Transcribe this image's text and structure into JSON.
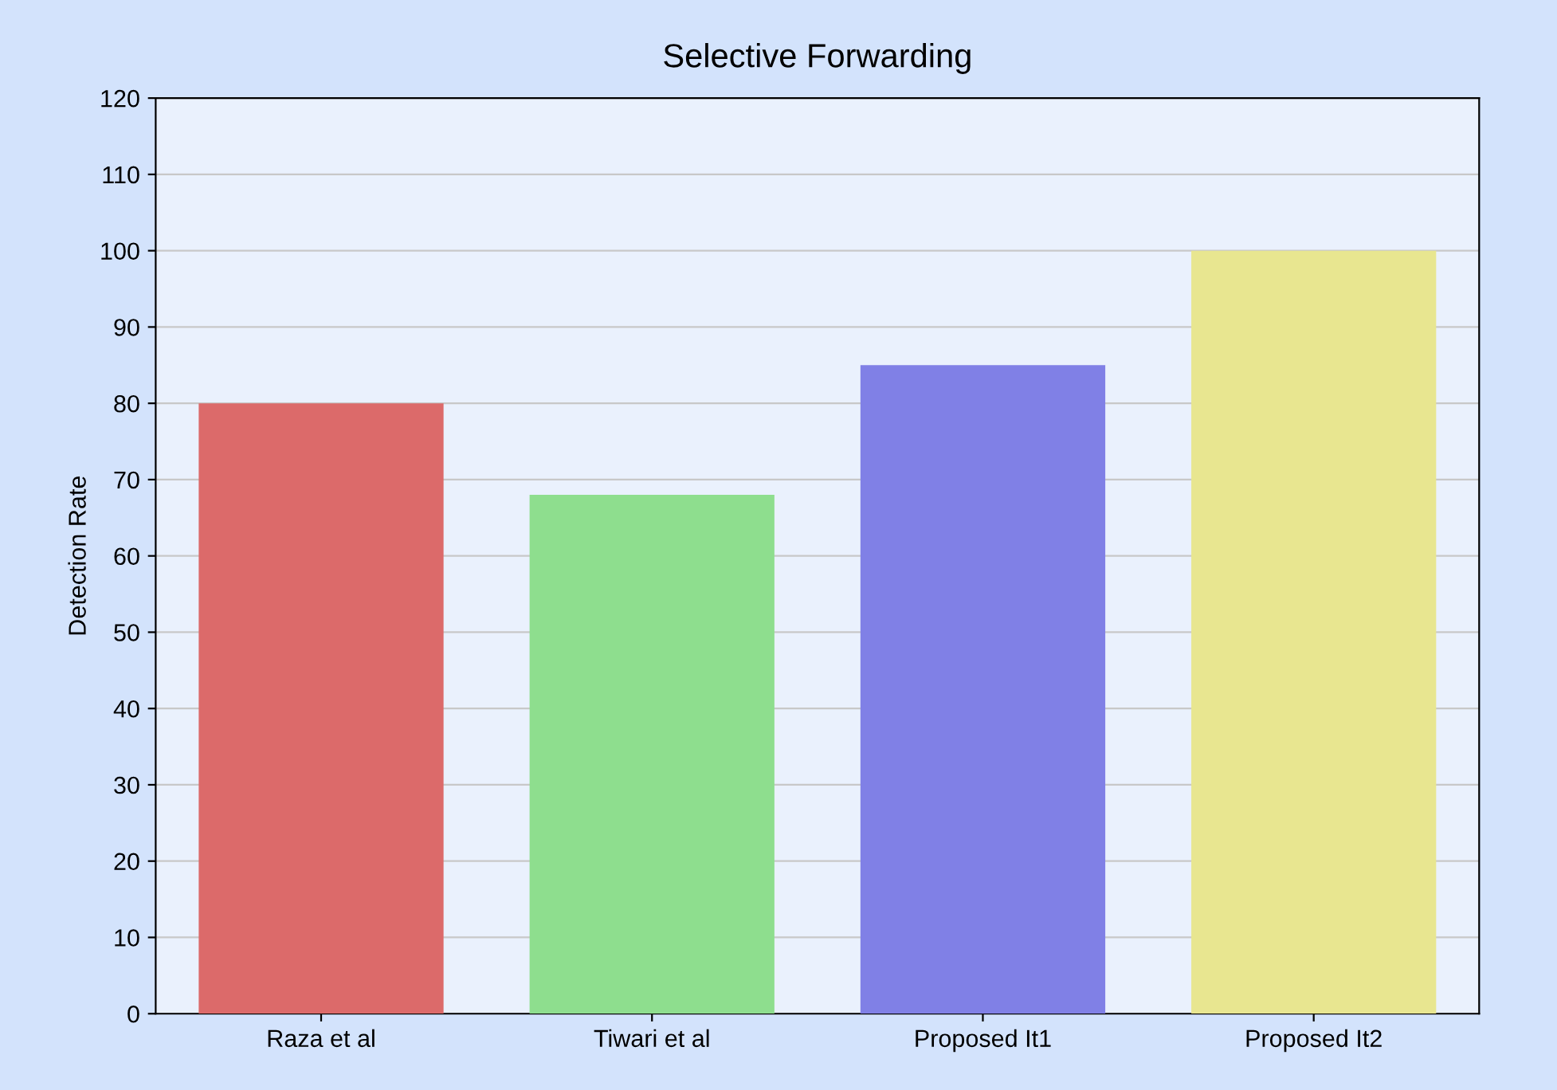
{
  "chart_data": {
    "type": "bar",
    "title": "Selective Forwarding",
    "ylabel": "Detection Rate",
    "categories": [
      "Raza et al",
      "Tiwari et al",
      "Proposed It1",
      "Proposed It2"
    ],
    "values": [
      80,
      68,
      85,
      100
    ],
    "colors": [
      "#dc6a6a",
      "#8ede8e",
      "#8080e6",
      "#e8e690"
    ],
    "ylim": [
      0,
      120
    ],
    "yticks": [
      0,
      10,
      20,
      30,
      40,
      50,
      60,
      70,
      80,
      90,
      100,
      110,
      120
    ],
    "grid": "y",
    "legend": false
  }
}
